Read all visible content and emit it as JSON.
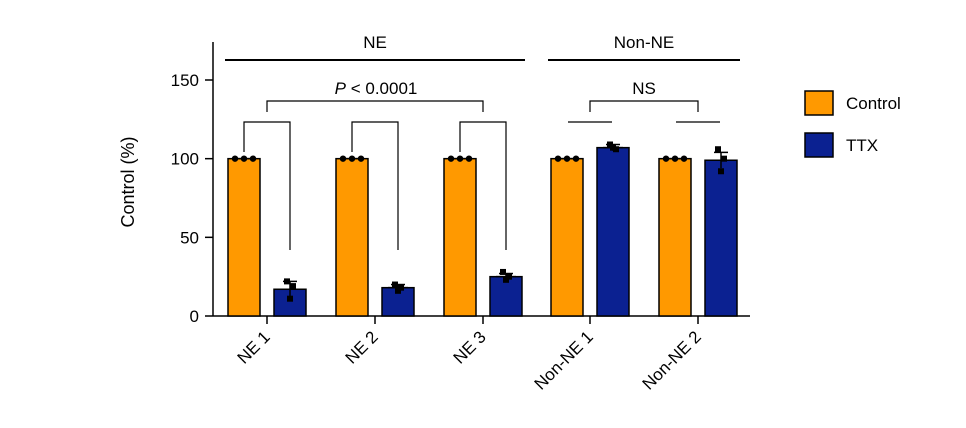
{
  "chart_data": {
    "type": "bar",
    "ylabel": "Control (%)",
    "xlabel": "",
    "ylim": [
      0,
      175
    ],
    "yticks": [
      0,
      50,
      100,
      150
    ],
    "categories": [
      "NE 1",
      "NE 2",
      "NE 3",
      "Non-NE 1",
      "Non-NE 2"
    ],
    "series": [
      {
        "name": "Control",
        "color": "#FF9900",
        "values": [
          100,
          100,
          100,
          100,
          100
        ],
        "errors": [
          0,
          0,
          0,
          0,
          0
        ],
        "points": [
          [
            100,
            100,
            100
          ],
          [
            100,
            100,
            100
          ],
          [
            100,
            100,
            100
          ],
          [
            100,
            100,
            100
          ],
          [
            100,
            100,
            100
          ]
        ]
      },
      {
        "name": "TTX",
        "color": "#0B2191",
        "values": [
          17,
          18,
          25,
          107,
          99
        ],
        "errors": [
          5,
          2,
          2,
          2,
          5
        ],
        "points": [
          [
            22,
            19,
            11
          ],
          [
            20,
            18,
            16
          ],
          [
            28,
            25,
            23
          ],
          [
            109,
            106,
            107
          ],
          [
            106,
            100,
            92
          ]
        ]
      }
    ],
    "group_labels": [
      {
        "label": "NE",
        "categories": [
          0,
          2
        ]
      },
      {
        "label": "Non-NE",
        "categories": [
          3,
          4
        ]
      }
    ],
    "annotations": {
      "p_prefix": "P",
      "p_rest": " < 0.0001",
      "ns": "NS"
    },
    "legend": {
      "placement": "right",
      "items": [
        "Control",
        "TTX"
      ]
    }
  }
}
